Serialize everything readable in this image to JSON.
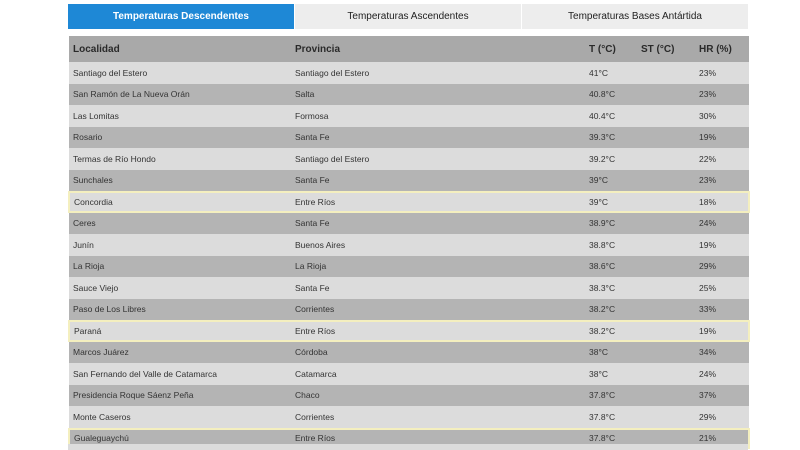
{
  "tabs": [
    {
      "label": "Temperaturas Descendentes",
      "active": true
    },
    {
      "label": "Temperaturas Ascendentes",
      "active": false
    },
    {
      "label": "Temperaturas Bases Antártida",
      "active": false
    }
  ],
  "table": {
    "columns": [
      "Localidad",
      "Provincia",
      "T (°C)",
      "ST (°C)",
      "HR (%)"
    ],
    "rows": [
      {
        "localidad": "Santiago del Estero",
        "provincia": "Santiago del Estero",
        "t": "41°C",
        "st": "",
        "hr": "23%",
        "highlighted": false
      },
      {
        "localidad": "San Ramón de La Nueva Orán",
        "provincia": "Salta",
        "t": "40.8°C",
        "st": "",
        "hr": "23%",
        "highlighted": false
      },
      {
        "localidad": "Las Lomitas",
        "provincia": "Formosa",
        "t": "40.4°C",
        "st": "",
        "hr": "30%",
        "highlighted": false
      },
      {
        "localidad": "Rosario",
        "provincia": "Santa Fe",
        "t": "39.3°C",
        "st": "",
        "hr": "19%",
        "highlighted": false
      },
      {
        "localidad": "Termas de Río Hondo",
        "provincia": "Santiago del Estero",
        "t": "39.2°C",
        "st": "",
        "hr": "22%",
        "highlighted": false
      },
      {
        "localidad": "Sunchales",
        "provincia": "Santa Fe",
        "t": "39°C",
        "st": "",
        "hr": "23%",
        "highlighted": false
      },
      {
        "localidad": "Concordia",
        "provincia": "Entre Ríos",
        "t": "39°C",
        "st": "",
        "hr": "18%",
        "highlighted": true
      },
      {
        "localidad": "Ceres",
        "provincia": "Santa Fe",
        "t": "38.9°C",
        "st": "",
        "hr": "24%",
        "highlighted": false
      },
      {
        "localidad": "Junín",
        "provincia": "Buenos Aires",
        "t": "38.8°C",
        "st": "",
        "hr": "19%",
        "highlighted": false
      },
      {
        "localidad": "La Rioja",
        "provincia": "La Rioja",
        "t": "38.6°C",
        "st": "",
        "hr": "29%",
        "highlighted": false
      },
      {
        "localidad": "Sauce Viejo",
        "provincia": "Santa Fe",
        "t": "38.3°C",
        "st": "",
        "hr": "25%",
        "highlighted": false
      },
      {
        "localidad": "Paso de Los Libres",
        "provincia": "Corrientes",
        "t": "38.2°C",
        "st": "",
        "hr": "33%",
        "highlighted": false
      },
      {
        "localidad": "Paraná",
        "provincia": "Entre Ríos",
        "t": "38.2°C",
        "st": "",
        "hr": "19%",
        "highlighted": true
      },
      {
        "localidad": "Marcos Juárez",
        "provincia": "Córdoba",
        "t": "38°C",
        "st": "",
        "hr": "34%",
        "highlighted": false
      },
      {
        "localidad": "San Fernando del Valle de Catamarca",
        "provincia": "Catamarca",
        "t": "38°C",
        "st": "",
        "hr": "24%",
        "highlighted": false
      },
      {
        "localidad": "Presidencia Roque Sáenz Peña",
        "provincia": "Chaco",
        "t": "37.8°C",
        "st": "",
        "hr": "37%",
        "highlighted": false
      },
      {
        "localidad": "Monte Caseros",
        "provincia": "Corrientes",
        "t": "37.8°C",
        "st": "",
        "hr": "29%",
        "highlighted": false
      },
      {
        "localidad": "Gualeguaychú",
        "provincia": "Entre Ríos",
        "t": "37.8°C",
        "st": "",
        "hr": "21%",
        "highlighted": true
      }
    ]
  },
  "colors": {
    "active_tab": "#1e88d6",
    "header": "#a9a9a9",
    "row_light": "#dcdcdc",
    "row_dark": "#b4b4b4",
    "highlight_border": "#f4efbf"
  }
}
